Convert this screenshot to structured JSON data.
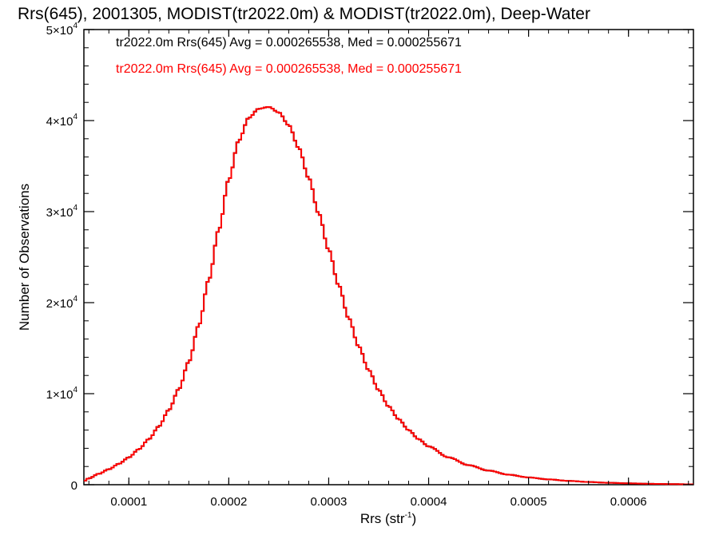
{
  "chart_data": {
    "type": "line",
    "title": "Rrs(645), 2001305, MODIST(tr2022.0m) & MODIST(tr2022.0m), Deep-Water",
    "xlabel": "Rrs (str",
    "xlabel_sup": "-1",
    "xlabel_end": ")",
    "ylabel": "Number of Observations",
    "xlim": [
      5.5e-05,
      0.000665
    ],
    "ylim": [
      0,
      50000
    ],
    "x_ticks": [
      {
        "value": 0.0001,
        "label": "0.0001"
      },
      {
        "value": 0.0002,
        "label": "0.0002"
      },
      {
        "value": 0.0003,
        "label": "0.0003"
      },
      {
        "value": 0.0004,
        "label": "0.0004"
      },
      {
        "value": 0.0005,
        "label": "0.0005"
      },
      {
        "value": 0.0006,
        "label": "0.0006"
      }
    ],
    "y_ticks": [
      {
        "value": 0,
        "base": "0",
        "exp": ""
      },
      {
        "value": 10000,
        "base": "1×10",
        "exp": "4"
      },
      {
        "value": 20000,
        "base": "2×10",
        "exp": "4"
      },
      {
        "value": 30000,
        "base": "3×10",
        "exp": "4"
      },
      {
        "value": 40000,
        "base": "4×10",
        "exp": "4"
      },
      {
        "value": 50000,
        "base": "5×10",
        "exp": "4"
      }
    ],
    "legend": [
      {
        "text": "tr2022.0m Rrs(645) Avg = 0.000265538, Med = 0.000255671",
        "color": "#000000"
      },
      {
        "text": "tr2022.0m Rrs(645) Avg = 0.000265538, Med = 0.000255671",
        "color": "#ff0000"
      }
    ],
    "legend_placement": "top-left",
    "grid": false,
    "histogram_step": true,
    "series": [
      {
        "color": "#000000",
        "x": [
          5.5e-05,
          6e-05,
          7e-05,
          8e-05,
          9e-05,
          0.0001,
          0.00011,
          0.00012,
          0.00013,
          0.00014,
          0.00015,
          0.00016,
          0.00017,
          0.00018,
          0.00019,
          0.0002,
          0.00021,
          0.00022,
          0.00023,
          0.00024,
          0.00025,
          0.00026,
          0.00027,
          0.00028,
          0.00029,
          0.0003,
          0.00031,
          0.00032,
          0.00033,
          0.00034,
          0.00035,
          0.00036,
          0.00037,
          0.00038,
          0.00039,
          0.0004,
          0.00042,
          0.00044,
          0.00046,
          0.00048,
          0.0005,
          0.00052,
          0.00054,
          0.00056,
          0.00058,
          0.0006,
          0.00062,
          0.00064,
          0.000665
        ],
        "y": [
          400,
          700,
          1200,
          1700,
          2300,
          3000,
          3900,
          5000,
          6400,
          8200,
          10500,
          13500,
          17500,
          22500,
          28000,
          33500,
          37800,
          40300,
          41300,
          41500,
          40900,
          39500,
          37000,
          33700,
          29800,
          25800,
          21900,
          18300,
          15200,
          12600,
          10400,
          8600,
          7200,
          6000,
          5000,
          4200,
          3000,
          2150,
          1550,
          1100,
          800,
          580,
          420,
          300,
          210,
          150,
          100,
          70,
          40
        ]
      },
      {
        "color": "#ff0000",
        "x": [
          5.5e-05,
          6e-05,
          7e-05,
          8e-05,
          9e-05,
          0.0001,
          0.00011,
          0.00012,
          0.00013,
          0.00014,
          0.00015,
          0.00016,
          0.00017,
          0.00018,
          0.00019,
          0.0002,
          0.00021,
          0.00022,
          0.00023,
          0.00024,
          0.00025,
          0.00026,
          0.00027,
          0.00028,
          0.00029,
          0.0003,
          0.00031,
          0.00032,
          0.00033,
          0.00034,
          0.00035,
          0.00036,
          0.00037,
          0.00038,
          0.00039,
          0.0004,
          0.00042,
          0.00044,
          0.00046,
          0.00048,
          0.0005,
          0.00052,
          0.00054,
          0.00056,
          0.00058,
          0.0006,
          0.00062,
          0.00064,
          0.000665
        ],
        "y": [
          400,
          700,
          1200,
          1700,
          2300,
          3000,
          3900,
          5000,
          6400,
          8200,
          10500,
          13500,
          17500,
          22500,
          28000,
          33500,
          37800,
          40300,
          41300,
          41500,
          40900,
          39500,
          37000,
          33700,
          29800,
          25800,
          21900,
          18300,
          15200,
          12600,
          10400,
          8600,
          7200,
          6000,
          5000,
          4200,
          3000,
          2150,
          1550,
          1100,
          800,
          580,
          420,
          300,
          210,
          150,
          100,
          70,
          40
        ]
      }
    ]
  }
}
